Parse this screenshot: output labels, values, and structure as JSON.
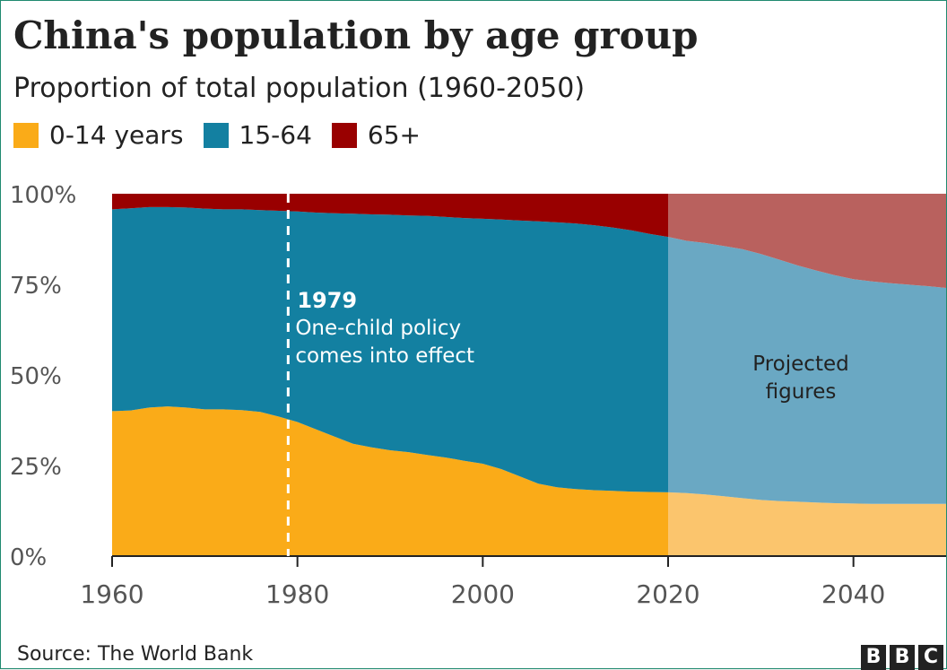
{
  "title": "China's population by age group",
  "subtitle": "Proportion of total population (1960-2050)",
  "source": "Source: The World Bank",
  "logo": [
    "B",
    "B",
    "C"
  ],
  "colors": {
    "age_0_14": "#faab18",
    "age_15_64": "#1380a1",
    "age_65_plus": "#990000",
    "age_0_14_projected": "#fbc56d",
    "age_15_64_projected": "#6aa8c3",
    "age_65_plus_projected": "#b9615e",
    "axis": "#222222",
    "grid": "#cccccc"
  },
  "chart_data": {
    "type": "area",
    "stacked": true,
    "title": "China's population by age group",
    "subtitle": "Proportion of total population (1960-2050)",
    "legend_position": "top-left",
    "xlim": [
      1960,
      2050
    ],
    "ylim": [
      0,
      100
    ],
    "x_ticks": [
      1960,
      1980,
      2000,
      2020,
      2040
    ],
    "y_ticks": [
      0,
      25,
      50,
      75,
      100
    ],
    "y_tick_labels": [
      "0%",
      "25%",
      "50%",
      "75%",
      "100%"
    ],
    "grid": true,
    "projection_start": 2020,
    "projection_label": [
      "Projected",
      "figures"
    ],
    "annotation": {
      "x": 1979,
      "title": "1979",
      "text": [
        "One-child policy",
        "comes into effect"
      ]
    },
    "x": [
      1960,
      1962,
      1964,
      1966,
      1968,
      1970,
      1972,
      1974,
      1976,
      1978,
      1980,
      1982,
      1984,
      1986,
      1988,
      1990,
      1992,
      1994,
      1996,
      1998,
      2000,
      2002,
      2004,
      2006,
      2008,
      2010,
      2012,
      2014,
      2016,
      2018,
      2020,
      2022,
      2024,
      2026,
      2028,
      2030,
      2032,
      2034,
      2036,
      2038,
      2040,
      2042,
      2044,
      2046,
      2048,
      2050
    ],
    "series": [
      {
        "name": "0-14 years",
        "values": [
          40,
          40.2,
          41,
          41.3,
          41,
          40.5,
          40.5,
          40.3,
          39.8,
          38.5,
          37,
          35,
          33,
          31,
          30,
          29.2,
          28.7,
          27.9,
          27.2,
          26.3,
          25.5,
          24,
          22,
          20,
          19,
          18.5,
          18.2,
          18,
          17.8,
          17.7,
          17.6,
          17.4,
          17,
          16.5,
          16,
          15.5,
          15.2,
          15,
          14.8,
          14.6,
          14.5,
          14.4,
          14.4,
          14.4,
          14.4,
          14.4
        ]
      },
      {
        "name": "15-64",
        "values": [
          55.7,
          55.8,
          55.3,
          55,
          55.2,
          55.4,
          55.2,
          55.4,
          55.7,
          56.8,
          58.1,
          59.8,
          61.6,
          63.5,
          64.3,
          65,
          65.3,
          66,
          66.4,
          67,
          67.6,
          68.9,
          70.6,
          72.4,
          73.1,
          73.3,
          73.1,
          72.7,
          72.1,
          71.2,
          70.5,
          69.6,
          69.4,
          69.1,
          68.7,
          67.9,
          66.6,
          65.2,
          64,
          62.9,
          61.9,
          61.4,
          60.9,
          60.5,
          60.1,
          59.6
        ]
      },
      {
        "name": "65+",
        "values": [
          4.3,
          4,
          3.7,
          3.7,
          3.8,
          4.1,
          4.3,
          4.3,
          4.5,
          4.7,
          4.9,
          5.2,
          5.4,
          5.5,
          5.7,
          5.8,
          6,
          6.1,
          6.4,
          6.7,
          6.9,
          7.1,
          7.4,
          7.6,
          7.9,
          8.2,
          8.7,
          9.3,
          10.1,
          11.1,
          11.9,
          13,
          13.6,
          14.4,
          15.3,
          16.6,
          18.2,
          19.8,
          21.2,
          22.5,
          23.6,
          24.2,
          24.7,
          25.1,
          25.5,
          26
        ]
      }
    ]
  }
}
